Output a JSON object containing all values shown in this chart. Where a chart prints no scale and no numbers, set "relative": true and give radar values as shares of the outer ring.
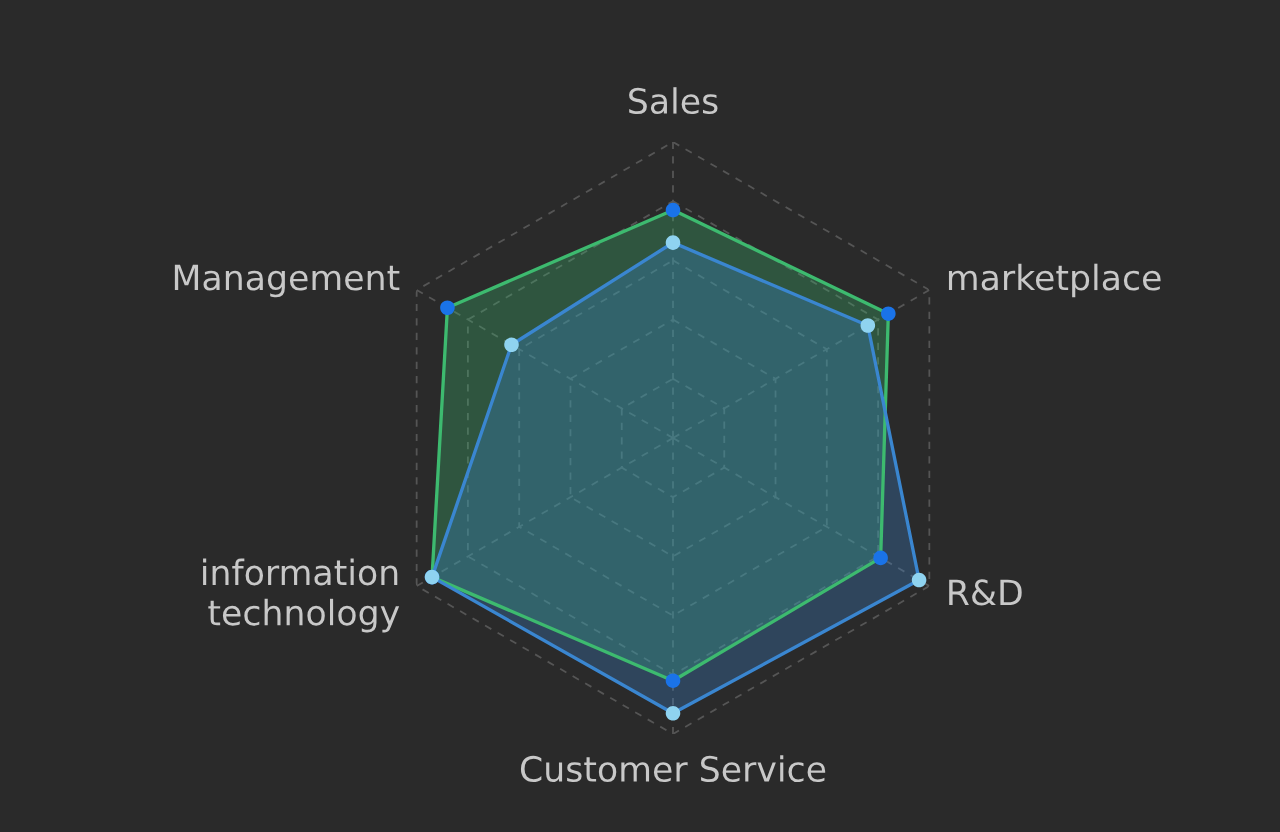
{
  "chart_data": {
    "type": "radar",
    "relative": true,
    "categories": [
      "Sales",
      "marketplace",
      "R&D",
      "Customer Service",
      "information\ntechnology",
      "Management"
    ],
    "series": [
      {
        "color": "#3dba6f",
        "colors": [
          "#1a73e8",
          "#1a73e8",
          "#1a73e8",
          "#1a73e8",
          "#1a73e8",
          "#1a73e8"
        ],
        "values": [
          0.77,
          0.84,
          0.81,
          0.82,
          0.94,
          0.88
        ]
      },
      {
        "color": "#3a86d0",
        "colors": [
          "#8fd3f0",
          "#8fd3f0",
          "#8fd3f0",
          "#8fd3f0",
          "#8fd3f0",
          "#8fd3f0"
        ],
        "values": [
          0.66,
          0.76,
          0.96,
          0.93,
          0.94,
          0.63
        ]
      }
    ],
    "grid": true,
    "marker": "circle",
    "line_style": "solid"
  }
}
